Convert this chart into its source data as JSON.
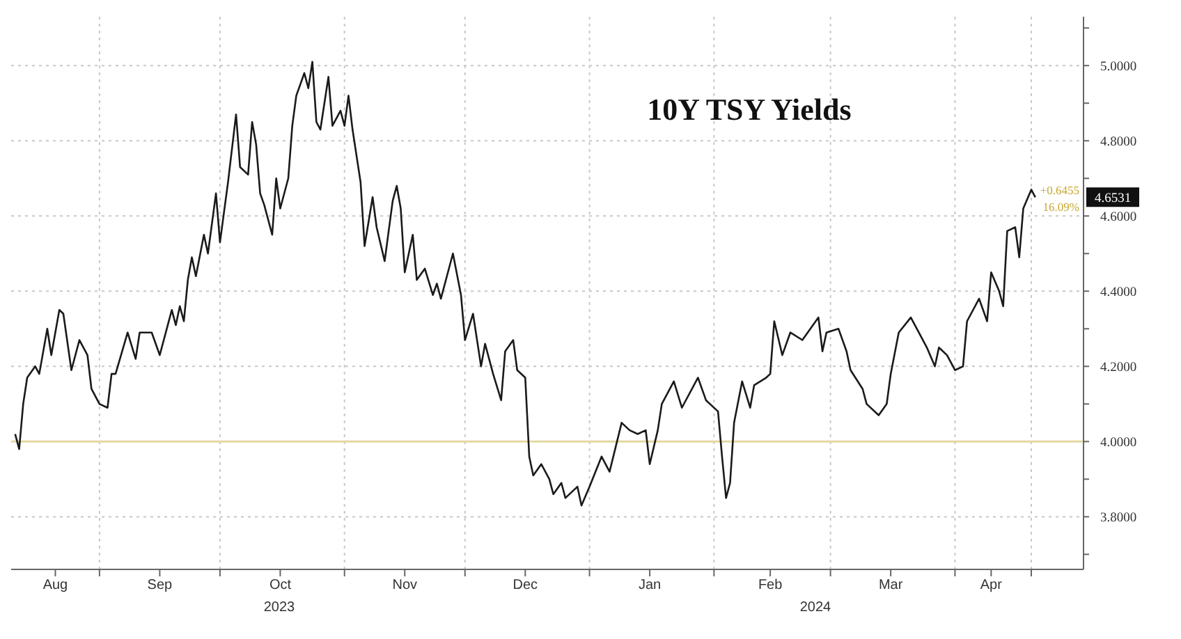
{
  "chart_data": {
    "type": "line",
    "title": "10Y TSY Yields",
    "x": [
      "2023-08-11",
      "2023-08-12",
      "2023-08-13",
      "2023-08-14",
      "2023-08-16",
      "2023-08-17",
      "2023-08-19",
      "2023-08-20",
      "2023-08-22",
      "2023-08-23",
      "2023-08-25",
      "2023-08-27",
      "2023-08-29",
      "2023-08-30",
      "2023-09-01",
      "2023-09-03",
      "2023-09-04",
      "2023-09-05",
      "2023-09-08",
      "2023-09-10",
      "2023-09-11",
      "2023-09-14",
      "2023-09-16",
      "2023-09-19",
      "2023-09-20",
      "2023-09-21",
      "2023-09-22",
      "2023-09-23",
      "2023-09-24",
      "2023-09-25",
      "2023-09-27",
      "2023-09-28",
      "2023-09-30",
      "2023-10-01",
      "2023-10-03",
      "2023-10-05",
      "2023-10-06",
      "2023-10-08",
      "2023-10-09",
      "2023-10-10",
      "2023-10-11",
      "2023-10-12",
      "2023-10-14",
      "2023-10-15",
      "2023-10-16",
      "2023-10-18",
      "2023-10-19",
      "2023-10-20",
      "2023-10-22",
      "2023-10-23",
      "2023-10-24",
      "2023-10-25",
      "2023-10-26",
      "2023-10-28",
      "2023-10-29",
      "2023-10-31",
      "2023-11-01",
      "2023-11-02",
      "2023-11-03",
      "2023-11-05",
      "2023-11-06",
      "2023-11-08",
      "2023-11-09",
      "2023-11-11",
      "2023-11-13",
      "2023-11-14",
      "2023-11-15",
      "2023-11-16",
      "2023-11-18",
      "2023-11-19",
      "2023-11-21",
      "2023-11-23",
      "2023-11-24",
      "2023-11-25",
      "2023-11-28",
      "2023-11-30",
      "2023-12-01",
      "2023-12-03",
      "2023-12-05",
      "2023-12-06",
      "2023-12-08",
      "2023-12-10",
      "2023-12-11",
      "2023-12-13",
      "2023-12-14",
      "2023-12-16",
      "2023-12-17",
      "2023-12-18",
      "2023-12-20",
      "2023-12-22",
      "2023-12-23",
      "2023-12-25",
      "2023-12-26",
      "2023-12-29",
      "2023-12-30",
      "2024-01-01",
      "2024-01-04",
      "2024-01-06",
      "2024-01-09",
      "2024-01-11",
      "2024-01-13",
      "2024-01-15",
      "2024-01-16",
      "2024-01-18",
      "2024-01-19",
      "2024-01-22",
      "2024-01-24",
      "2024-01-28",
      "2024-01-30",
      "2024-02-02",
      "2024-02-03",
      "2024-02-04",
      "2024-02-05",
      "2024-02-06",
      "2024-02-08",
      "2024-02-10",
      "2024-02-11",
      "2024-02-14",
      "2024-02-15",
      "2024-02-16",
      "2024-02-18",
      "2024-02-20",
      "2024-02-23",
      "2024-02-25",
      "2024-02-27",
      "2024-02-28",
      "2024-02-29",
      "2024-03-03",
      "2024-03-05",
      "2024-03-06",
      "2024-03-09",
      "2024-03-10",
      "2024-03-13",
      "2024-03-15",
      "2024-03-16",
      "2024-03-18",
      "2024-03-21",
      "2024-03-23",
      "2024-03-25",
      "2024-03-27",
      "2024-03-28",
      "2024-03-30",
      "2024-04-01",
      "2024-04-03",
      "2024-04-04",
      "2024-04-07",
      "2024-04-09",
      "2024-04-10",
      "2024-04-12",
      "2024-04-13",
      "2024-04-14",
      "2024-04-16",
      "2024-04-17",
      "2024-04-18",
      "2024-04-20",
      "2024-04-21"
    ],
    "series": [
      {
        "color": "#1a1a1a",
        "values": [
          4.02,
          3.98,
          4.1,
          4.17,
          4.2,
          4.18,
          4.3,
          4.23,
          4.35,
          4.34,
          4.19,
          4.27,
          4.23,
          4.14,
          4.1,
          4.09,
          4.18,
          4.18,
          4.29,
          4.22,
          4.29,
          4.29,
          4.23,
          4.35,
          4.31,
          4.36,
          4.32,
          4.43,
          4.49,
          4.44,
          4.55,
          4.5,
          4.66,
          4.53,
          4.69,
          4.87,
          4.73,
          4.71,
          4.85,
          4.79,
          4.66,
          4.63,
          4.55,
          4.7,
          4.62,
          4.7,
          4.84,
          4.92,
          4.98,
          4.94,
          5.01,
          4.85,
          4.83,
          4.97,
          4.84,
          4.88,
          4.84,
          4.92,
          4.83,
          4.69,
          4.52,
          4.65,
          4.57,
          4.48,
          4.64,
          4.68,
          4.62,
          4.45,
          4.55,
          4.43,
          4.46,
          4.39,
          4.42,
          4.38,
          4.5,
          4.39,
          4.27,
          4.34,
          4.2,
          4.26,
          4.18,
          4.11,
          4.24,
          4.27,
          4.19,
          4.17,
          3.96,
          3.91,
          3.94,
          3.9,
          3.86,
          3.89,
          3.85,
          3.88,
          3.83,
          3.88,
          3.96,
          3.92,
          4.05,
          4.03,
          4.02,
          4.03,
          3.94,
          4.03,
          4.1,
          4.16,
          4.09,
          4.17,
          4.11,
          4.08,
          3.96,
          3.85,
          3.89,
          4.05,
          4.16,
          4.09,
          4.15,
          4.17,
          4.18,
          4.32,
          4.23,
          4.29,
          4.27,
          4.3,
          4.33,
          4.24,
          4.29,
          4.3,
          4.24,
          4.19,
          4.14,
          4.1,
          4.07,
          4.1,
          4.18,
          4.29,
          4.33,
          4.29,
          4.25,
          4.2,
          4.25,
          4.23,
          4.19,
          4.2,
          4.32,
          4.38,
          4.32,
          4.45,
          4.4,
          4.36,
          4.56,
          4.57,
          4.49,
          4.62,
          4.67,
          4.65
        ]
      }
    ],
    "xlim": [
      "2023-08-10",
      "2024-05-03"
    ],
    "xticks": [
      {
        "value": "2023-08-21",
        "label": "Aug"
      },
      {
        "value": "2023-09-01",
        "label": null
      },
      {
        "value": "2023-09-16",
        "label": "Sep"
      },
      {
        "value": "2023-10-01",
        "label": null
      },
      {
        "value": "2023-10-16",
        "label": "Oct"
      },
      {
        "value": "2023-11-01",
        "label": null
      },
      {
        "value": "2023-11-16",
        "label": "Nov"
      },
      {
        "value": "2023-12-01",
        "label": null
      },
      {
        "value": "2023-12-16",
        "label": "Dec"
      },
      {
        "value": "2024-01-01",
        "label": null
      },
      {
        "value": "2024-01-16",
        "label": "Jan"
      },
      {
        "value": "2024-02-01",
        "label": null
      },
      {
        "value": "2024-02-15",
        "label": "Feb"
      },
      {
        "value": "2024-03-01",
        "label": null
      },
      {
        "value": "2024-03-16",
        "label": "Mar"
      },
      {
        "value": "2024-04-01",
        "label": null
      },
      {
        "value": "2024-04-10",
        "label": "Apr"
      },
      {
        "value": "2024-04-20",
        "label": null
      }
    ],
    "ylim": [
      3.66,
      5.13
    ],
    "yticks": [
      {
        "value": 3.7,
        "label": null
      },
      {
        "value": 3.8,
        "label": "3.8000"
      },
      {
        "value": 3.9,
        "label": null
      },
      {
        "value": 4.0,
        "label": "4.0000"
      },
      {
        "value": 4.1,
        "label": null
      },
      {
        "value": 4.2,
        "label": "4.2000"
      },
      {
        "value": 4.3,
        "label": null
      },
      {
        "value": 4.4,
        "label": "4.4000"
      },
      {
        "value": 4.5,
        "label": null
      },
      {
        "value": 4.6,
        "label": "4.6000"
      },
      {
        "value": 4.7,
        "label": null
      },
      {
        "value": 4.8,
        "label": "4.8000"
      },
      {
        "value": 4.9,
        "label": null
      },
      {
        "value": 5.0,
        "label": "5.0000"
      },
      {
        "value": 5.1,
        "label": null
      }
    ],
    "grid": true,
    "ref_lines": [
      {
        "axis": "y",
        "value": 4.0,
        "color": "#e3d9a0"
      }
    ],
    "annotations": [
      "4.6531",
      "+0.6455",
      "16.09%",
      "2023",
      "2024"
    ]
  }
}
